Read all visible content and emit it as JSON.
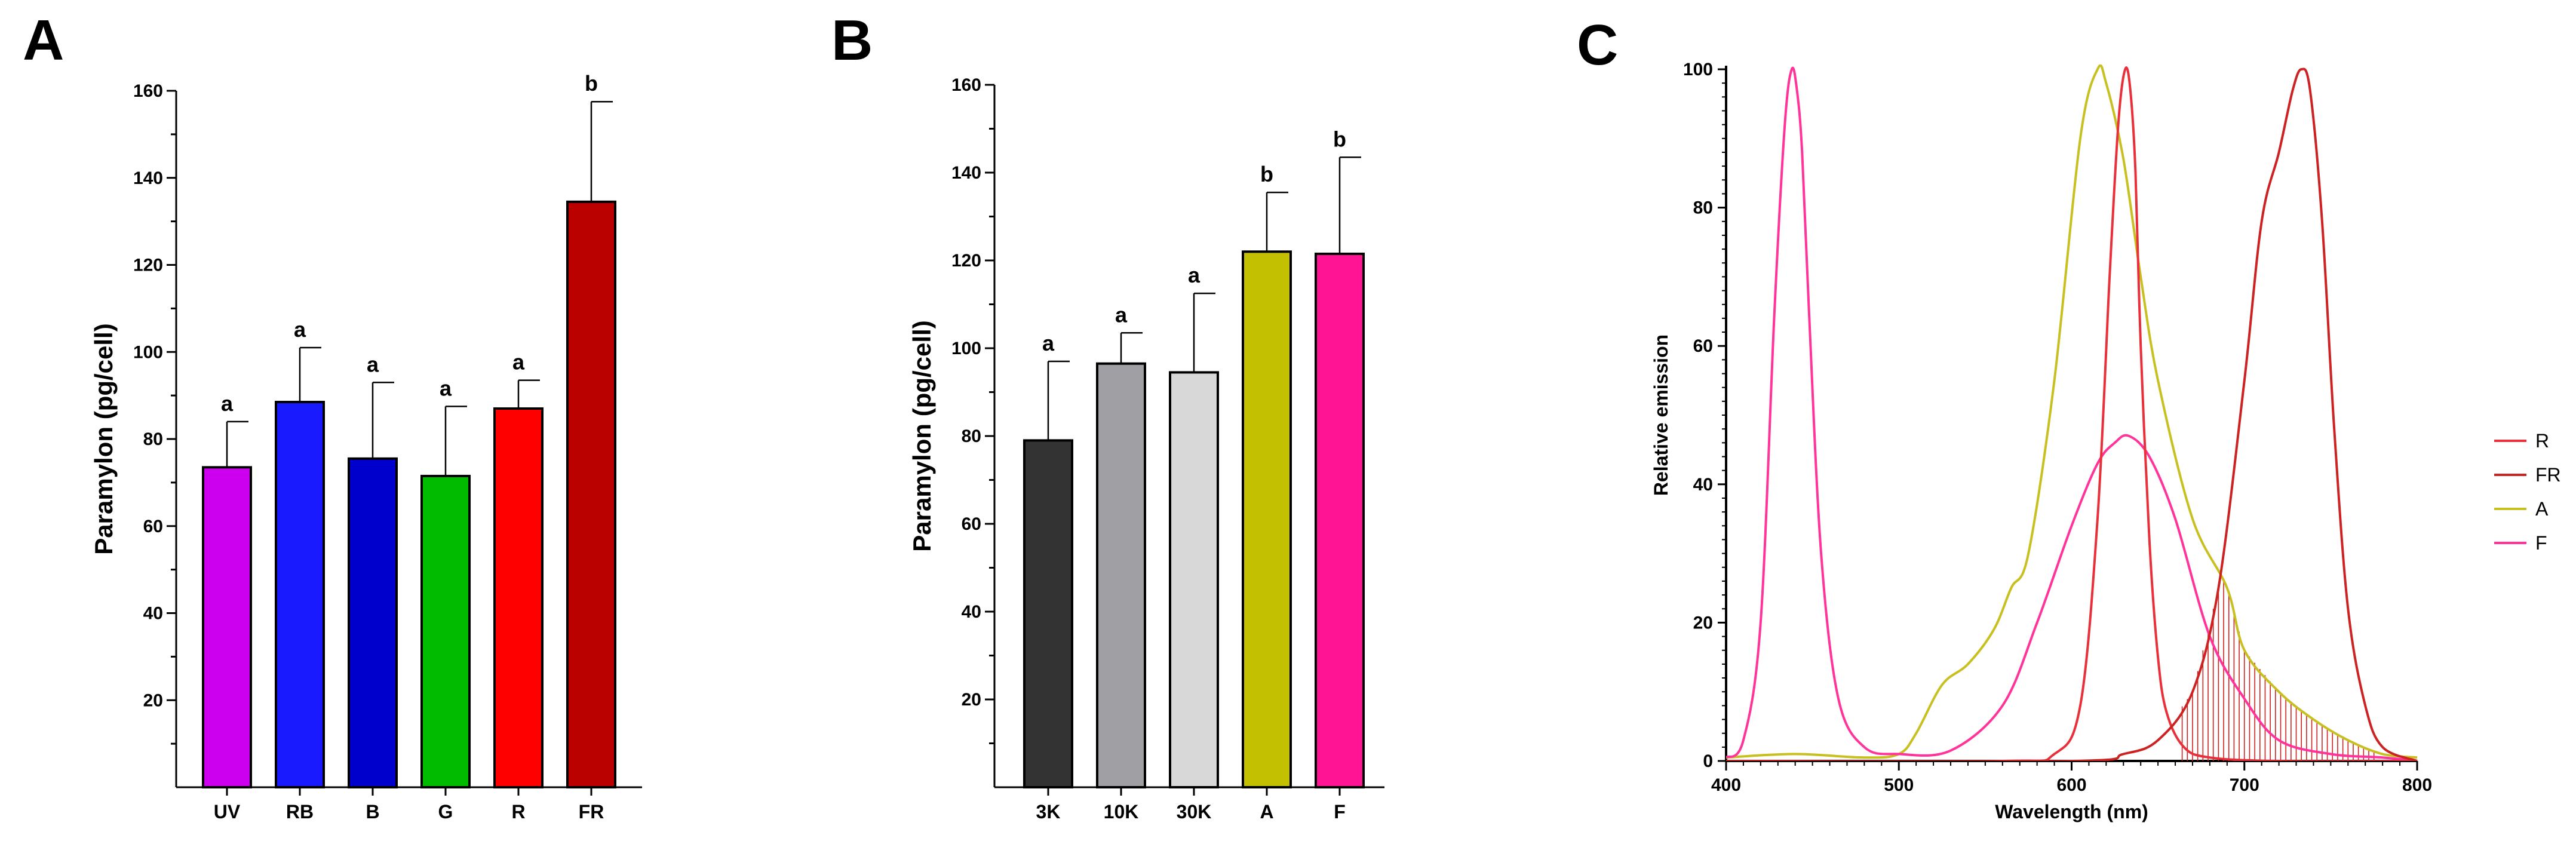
{
  "panels": {
    "a": "A",
    "b": "B",
    "c": "C"
  },
  "chart_data": [
    {
      "type": "bar",
      "panel": "A",
      "categories": [
        "UV",
        "RB",
        "B",
        "G",
        "R",
        "FR"
      ],
      "values": [
        73.5,
        88.5,
        75.5,
        71.5,
        87.0,
        134.5
      ],
      "errors": [
        10.5,
        12.5,
        17.5,
        16.0,
        6.5,
        23.0
      ],
      "significance": [
        "a",
        "a",
        "a",
        "a",
        "a",
        "b"
      ],
      "colors": [
        "#cc00ee",
        "#1a1aff",
        "#0000cc",
        "#00bb00",
        "#ff0000",
        "#bb0000"
      ],
      "ylabel": "Paramylon (pg/cell)",
      "ylim": [
        0,
        160
      ],
      "yticks": [
        20,
        40,
        60,
        80,
        100,
        120,
        140,
        160
      ]
    },
    {
      "type": "bar",
      "panel": "B",
      "categories": [
        "3K",
        "10K",
        "30K",
        "A",
        "F"
      ],
      "values": [
        79.0,
        96.5,
        94.5,
        122.0,
        121.5
      ],
      "errors": [
        18.0,
        7.0,
        18.0,
        13.5,
        22.0
      ],
      "significance": [
        "a",
        "a",
        "a",
        "b",
        "b"
      ],
      "colors": [
        "#333333",
        "#a0a0a4",
        "#d8d8d8",
        "#c2c000",
        "#ff1493"
      ],
      "ylabel": "Paramylon (pg/cell)",
      "ylim": [
        0,
        160
      ],
      "yticks": [
        20,
        40,
        60,
        80,
        100,
        120,
        140,
        160
      ]
    },
    {
      "type": "line",
      "panel": "C",
      "xlabel": "Wavelength (nm)",
      "ylabel": "Relative emission",
      "xlim": [
        400,
        800
      ],
      "ylim": [
        0,
        100
      ],
      "xticks": [
        400,
        500,
        600,
        700,
        800
      ],
      "yticks": [
        0,
        20,
        40,
        60,
        80,
        100
      ],
      "legend_position": "right",
      "series": [
        {
          "name": "R",
          "color": "#e8303a",
          "x": [
            400,
            560,
            590,
            605,
            615,
            622,
            627,
            631,
            634,
            637,
            640,
            645,
            650,
            655,
            665,
            680,
            720,
            800
          ],
          "y": [
            0,
            0,
            1,
            8,
            35,
            70,
            92,
            100,
            97,
            85,
            60,
            32,
            15,
            7,
            2,
            0.5,
            0,
            0
          ]
        },
        {
          "name": "FR",
          "color": "#cc2222",
          "x": [
            400,
            600,
            630,
            650,
            670,
            685,
            700,
            710,
            720,
            728,
            733,
            738,
            745,
            752,
            760,
            770,
            780,
            800
          ],
          "y": [
            0,
            0,
            1,
            3,
            10,
            25,
            55,
            78,
            88,
            97,
            100,
            97,
            78,
            48,
            22,
            8,
            2,
            0
          ]
        },
        {
          "name": "A",
          "color": "#c8c020",
          "x": [
            400,
            440,
            480,
            500,
            510,
            525,
            540,
            555,
            565,
            575,
            590,
            605,
            615,
            620,
            630,
            640,
            650,
            670,
            690,
            700,
            720,
            740,
            760,
            780,
            800
          ],
          "y": [
            0.5,
            1,
            0.5,
            1,
            4,
            11,
            14,
            19,
            25,
            30,
            55,
            90,
            100,
            98,
            87,
            70,
            55,
            35,
            25,
            16,
            10,
            6,
            3,
            1,
            0.5
          ]
        },
        {
          "name": "F",
          "color": "#ff3399",
          "x": [
            400,
            410,
            420,
            428,
            434,
            438,
            441,
            444,
            448,
            455,
            465,
            480,
            500,
            530,
            560,
            580,
            600,
            615,
            625,
            633,
            645,
            660,
            680,
            700,
            720,
            750,
            780,
            800
          ],
          "y": [
            0.5,
            3,
            20,
            65,
            92,
            100,
            97,
            88,
            65,
            30,
            9,
            2,
            1,
            1.5,
            8,
            20,
            34,
            43,
            46,
            47,
            44,
            35,
            18,
            9,
            3,
            1,
            0.5,
            0
          ]
        }
      ]
    }
  ]
}
